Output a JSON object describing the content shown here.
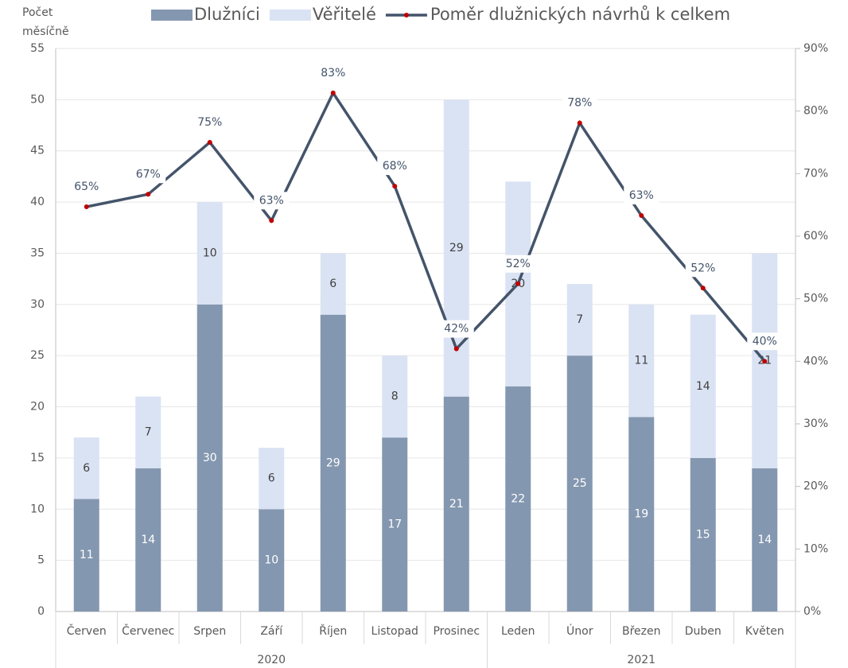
{
  "chart_data": {
    "type": "bar",
    "stacked": true,
    "y_label": [
      "Počet",
      "měsíčně"
    ],
    "categories": [
      "Červen",
      "Červenec",
      "Srpen",
      "Září",
      "Říjen",
      "Listopad",
      "Prosinec",
      "Leden",
      "Únor",
      "Březen",
      "Duben",
      "Květen"
    ],
    "groups": [
      {
        "label": "2020",
        "count": 7
      },
      {
        "label": "2021",
        "count": 5
      }
    ],
    "series": [
      {
        "name": "Dlužníci",
        "type": "bar",
        "color": "#8497b0",
        "label_color": "#ffffff",
        "values": [
          11,
          14,
          30,
          10,
          29,
          17,
          21,
          22,
          25,
          19,
          15,
          14
        ]
      },
      {
        "name": "Věřitelé",
        "type": "bar",
        "color": "#dae3f3",
        "label_color": "#404040",
        "values": [
          6,
          7,
          10,
          6,
          6,
          8,
          29,
          20,
          7,
          11,
          14,
          21
        ]
      },
      {
        "name": "Poměr dlužnických návrhů k celkem",
        "type": "line",
        "axis": "y2",
        "color": "#44546a",
        "marker_color": "#c00000",
        "values": [
          64.7,
          66.7,
          75,
          62.5,
          82.9,
          68,
          42,
          52.4,
          78.1,
          63.3,
          51.7,
          40
        ],
        "value_labels": [
          "65%",
          "67%",
          "75%",
          "63%",
          "83%",
          "68%",
          "42%",
          "52%",
          "78%",
          "63%",
          "52%",
          "40%"
        ]
      }
    ],
    "ylim": [
      0,
      55
    ],
    "yticks": [
      0,
      5,
      10,
      15,
      20,
      25,
      30,
      35,
      40,
      45,
      50,
      55
    ],
    "y2lim": [
      0,
      90
    ],
    "y2ticks": [
      {
        "value": 0,
        "label": "0%"
      },
      {
        "value": 10,
        "label": "10%"
      },
      {
        "value": 20,
        "label": "20%"
      },
      {
        "value": 30,
        "label": "30%"
      },
      {
        "value": 40,
        "label": "40%"
      },
      {
        "value": 50,
        "label": "50%"
      },
      {
        "value": 60,
        "label": "60%"
      },
      {
        "value": 70,
        "label": "70%"
      },
      {
        "value": 80,
        "label": "80%"
      },
      {
        "value": 90,
        "label": "90%"
      }
    ],
    "grid": true,
    "legend": "top"
  }
}
